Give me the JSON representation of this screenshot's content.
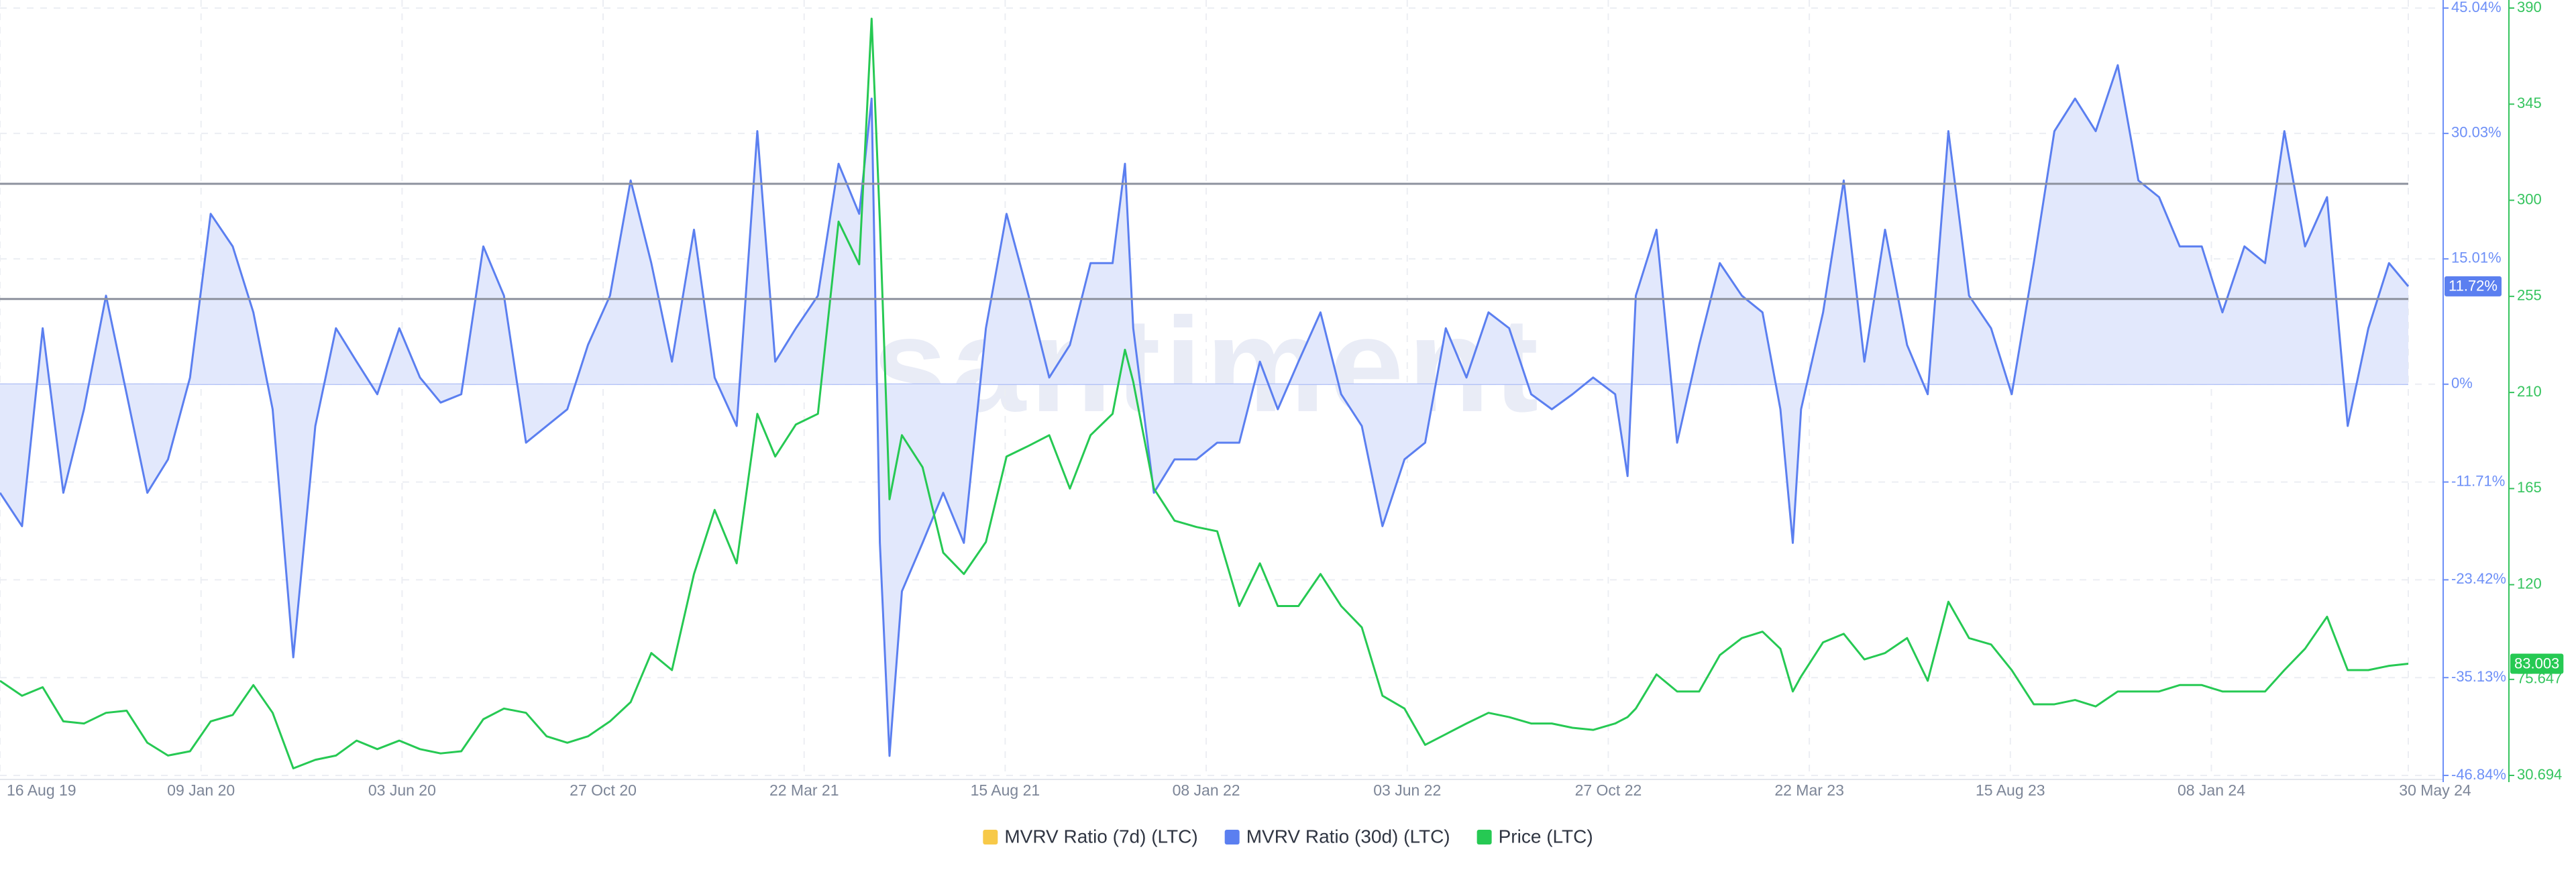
{
  "chart_data": {
    "type": "line",
    "watermark": "santiment",
    "x": [
      "2019-08-16",
      "2019-09-01",
      "2019-09-16",
      "2019-10-01",
      "2019-10-16",
      "2019-11-01",
      "2019-11-16",
      "2019-12-01",
      "2019-12-16",
      "2020-01-01",
      "2020-01-16",
      "2020-02-01",
      "2020-02-16",
      "2020-03-01",
      "2020-03-16",
      "2020-04-01",
      "2020-04-16",
      "2020-05-01",
      "2020-05-16",
      "2020-06-01",
      "2020-06-16",
      "2020-07-01",
      "2020-07-16",
      "2020-08-01",
      "2020-08-16",
      "2020-09-01",
      "2020-09-16",
      "2020-10-01",
      "2020-10-16",
      "2020-11-01",
      "2020-11-16",
      "2020-12-01",
      "2020-12-16",
      "2021-01-01",
      "2021-01-16",
      "2021-02-01",
      "2021-02-16",
      "2021-03-01",
      "2021-03-16",
      "2021-04-01",
      "2021-04-16",
      "2021-05-01",
      "2021-05-10",
      "2021-05-16",
      "2021-05-23",
      "2021-06-01",
      "2021-06-16",
      "2021-07-01",
      "2021-07-16",
      "2021-08-01",
      "2021-08-16",
      "2021-09-01",
      "2021-09-16",
      "2021-10-01",
      "2021-10-16",
      "2021-11-01",
      "2021-11-10",
      "2021-11-16",
      "2021-12-01",
      "2021-12-16",
      "2022-01-01",
      "2022-01-16",
      "2022-02-01",
      "2022-02-16",
      "2022-03-01",
      "2022-03-16",
      "2022-04-01",
      "2022-04-16",
      "2022-05-01",
      "2022-05-16",
      "2022-06-01",
      "2022-06-16",
      "2022-07-01",
      "2022-07-16",
      "2022-08-01",
      "2022-08-16",
      "2022-09-01",
      "2022-09-16",
      "2022-10-01",
      "2022-10-16",
      "2022-11-01",
      "2022-11-10",
      "2022-11-16",
      "2022-12-01",
      "2022-12-16",
      "2023-01-01",
      "2023-01-16",
      "2023-02-01",
      "2023-02-16",
      "2023-03-01",
      "2023-03-10",
      "2023-03-16",
      "2023-04-01",
      "2023-04-16",
      "2023-05-01",
      "2023-05-16",
      "2023-06-01",
      "2023-06-16",
      "2023-07-01",
      "2023-07-16",
      "2023-08-01",
      "2023-08-16",
      "2023-09-01",
      "2023-09-16",
      "2023-10-01",
      "2023-10-16",
      "2023-11-01",
      "2023-11-16",
      "2023-12-01",
      "2023-12-16",
      "2024-01-01",
      "2024-01-16",
      "2024-02-01",
      "2024-02-16",
      "2024-03-01",
      "2024-03-16",
      "2024-04-01",
      "2024-04-16",
      "2024-05-01",
      "2024-05-16",
      "2024-05-30"
    ],
    "series": [
      {
        "name": "MVRV Ratio (7d) (LTC)",
        "color": "#f7c948"
      },
      {
        "name": "MVRV Ratio (30d) (LTC)",
        "color": "#5b7ff0",
        "area_color": "#e2e8fc",
        "last_label": "11.72%",
        "values": [
          -13,
          -17,
          6.7,
          -13,
          -3,
          10.6,
          -1.2,
          -13,
          -9,
          0.8,
          20.4,
          16.5,
          8.6,
          -3,
          -32.7,
          -5,
          6.7,
          2.7,
          -1.2,
          6.7,
          0.8,
          -2.2,
          -1.2,
          16.5,
          10.6,
          -7,
          -5,
          -3,
          4.7,
          10.6,
          24.4,
          14.5,
          2.7,
          18.5,
          0.8,
          -5,
          30.3,
          2.7,
          6.7,
          10.6,
          26.4,
          20.4,
          34.2,
          -19,
          -44.5,
          -24.8,
          -19,
          -13,
          -19,
          6.7,
          20.4,
          10.6,
          0.8,
          4.7,
          14.5,
          14.5,
          26.4,
          6.7,
          -13,
          -9,
          -9,
          -7,
          -7,
          2.7,
          -3,
          2.7,
          8.6,
          -1.2,
          -5,
          -17,
          -9,
          -7,
          6.7,
          0.8,
          8.6,
          6.7,
          -1.2,
          -3,
          -1.2,
          0.8,
          -1.2,
          -11,
          10.6,
          18.5,
          -7,
          4.7,
          14.5,
          10.6,
          8.6,
          -3,
          -19,
          -3,
          8.6,
          24.4,
          2.7,
          18.5,
          4.7,
          -1.2,
          30.3,
          10.6,
          6.7,
          -1.2,
          14.5,
          30.3,
          34.2,
          30.3,
          38.2,
          24.4,
          22.4,
          16.5,
          16.5,
          8.6,
          16.5,
          14.5,
          30.3,
          16.5,
          22.4,
          -5,
          6.7,
          14.5,
          11.72
        ]
      },
      {
        "name": "Price (LTC)",
        "color": "#26c953",
        "axis": "y2",
        "last_label": "83.003",
        "values": [
          75,
          68,
          72,
          56,
          55,
          60,
          61,
          46,
          40,
          42,
          56,
          59,
          73,
          60,
          34,
          38,
          40,
          47,
          43,
          47,
          43,
          41,
          42,
          57,
          62,
          60,
          49,
          46,
          49,
          56,
          65,
          88,
          80,
          125,
          155,
          130,
          200,
          180,
          195,
          200,
          290,
          270,
          385,
          290,
          160,
          190,
          175,
          135,
          125,
          140,
          180,
          185,
          190,
          165,
          190,
          200,
          230,
          215,
          165,
          150,
          147,
          145,
          110,
          130,
          110,
          110,
          125,
          110,
          100,
          68,
          62,
          45,
          50,
          55,
          60,
          58,
          55,
          55,
          53,
          52,
          55,
          58,
          62,
          78,
          70,
          70,
          87,
          95,
          98,
          90,
          70,
          77,
          93,
          97,
          85,
          88,
          95,
          75,
          112,
          95,
          92,
          80,
          64,
          64,
          66,
          63,
          70,
          70,
          70,
          73,
          73,
          70,
          70,
          70,
          80,
          90,
          105,
          80,
          80,
          82,
          83.003
        ]
      }
    ],
    "xlim": [
      "2019-08-16",
      "2024-05-30"
    ],
    "xticks": [
      {
        "value": "2019-08-16",
        "label": "16 Aug 19"
      },
      {
        "value": "2020-01-09",
        "label": "09 Jan 20"
      },
      {
        "value": "2020-06-03",
        "label": "03 Jun 20"
      },
      {
        "value": "2020-10-27",
        "label": "27 Oct 20"
      },
      {
        "value": "2021-03-22",
        "label": "22 Mar 21"
      },
      {
        "value": "2021-08-15",
        "label": "15 Aug 21"
      },
      {
        "value": "2022-01-08",
        "label": "08 Jan 22"
      },
      {
        "value": "2022-06-03",
        "label": "03 Jun 22"
      },
      {
        "value": "2022-10-27",
        "label": "27 Oct 22"
      },
      {
        "value": "2023-03-22",
        "label": "22 Mar 23"
      },
      {
        "value": "2023-08-15",
        "label": "15 Aug 23"
      },
      {
        "value": "2024-01-08",
        "label": "08 Jan 24"
      },
      {
        "value": "2024-05-30",
        "label": "30 May 24"
      }
    ],
    "ylim": [
      -46.84,
      45.04
    ],
    "yticks": [
      {
        "value": 45.04,
        "label": "45.04%"
      },
      {
        "value": 30.03,
        "label": "30.03%"
      },
      {
        "value": 15.01,
        "label": "15.01%"
      },
      {
        "value": 0,
        "label": "0%"
      },
      {
        "value": -11.71,
        "label": "-11.71%"
      },
      {
        "value": -23.42,
        "label": "-23.42%"
      },
      {
        "value": -35.13,
        "label": "-35.13%"
      },
      {
        "value": -46.84,
        "label": "-46.84%"
      }
    ],
    "y_color": "#6d8ff7",
    "y2lim": [
      30.694,
      390
    ],
    "y2ticks": [
      390,
      345,
      300,
      255,
      210,
      165,
      120,
      75.647,
      30.694
    ],
    "y2_color": "#35c45e",
    "reference_lines": [
      24,
      10.2
    ],
    "reference_color": "#8d929e",
    "grid": true,
    "legend": "bottom"
  }
}
